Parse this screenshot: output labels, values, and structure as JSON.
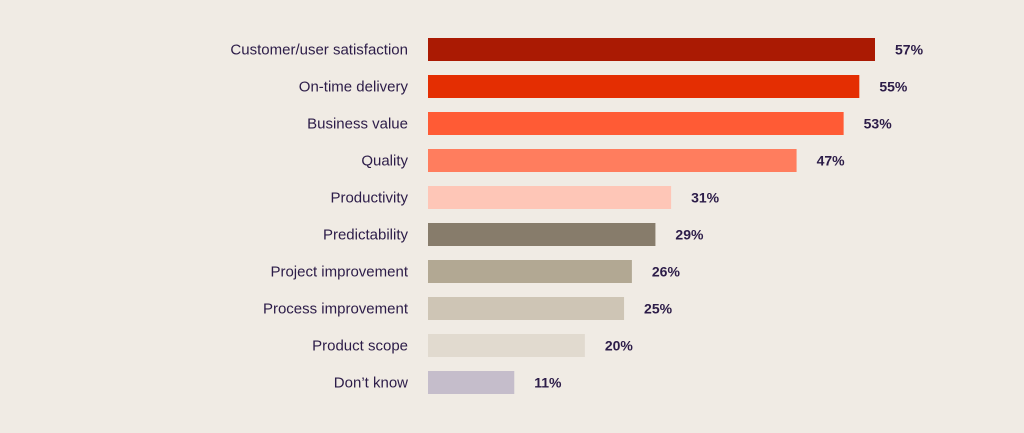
{
  "chart_data": {
    "type": "bar",
    "orientation": "horizontal",
    "title": "",
    "xlabel": "",
    "ylabel": "",
    "xlim": [
      0,
      57
    ],
    "grid": false,
    "categories": [
      "Customer/user satisfaction",
      "On-time delivery",
      "Business value",
      "Quality",
      "Productivity",
      "Predictability",
      "Project improvement",
      "Process improvement",
      "Product scope",
      "Don’t know"
    ],
    "values": [
      57,
      55,
      53,
      47,
      31,
      29,
      26,
      25,
      20,
      11
    ],
    "value_labels": [
      "57%",
      "55%",
      "53%",
      "47%",
      "31%",
      "29%",
      "26%",
      "25%",
      "20%",
      "11%"
    ],
    "bar_colors": [
      "#aa1a03",
      "#e42e02",
      "#ff5b35",
      "#ff7d5e",
      "#fec6b7",
      "#877c6b",
      "#b2a893",
      "#cec5b5",
      "#e1dacf",
      "#c5bdcb"
    ]
  }
}
